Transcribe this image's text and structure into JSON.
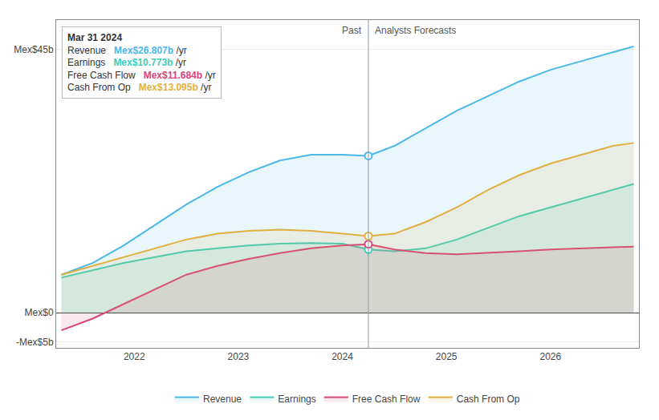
{
  "chart_data": {
    "type": "area",
    "x": [
      2021.3,
      2021.6,
      2021.9,
      2022.2,
      2022.5,
      2022.8,
      2023.1,
      2023.4,
      2023.7,
      2024.0,
      2024.25,
      2024.5,
      2024.8,
      2025.1,
      2025.4,
      2025.7,
      2026.0,
      2026.3,
      2026.6,
      2026.8
    ],
    "series": [
      {
        "name": "Revenue",
        "color": "#4ab8e8",
        "values": [
          6.5,
          8.5,
          11.5,
          15.0,
          18.5,
          21.5,
          24.0,
          26.0,
          27.0,
          27.0,
          26.8,
          28.5,
          31.5,
          34.5,
          37.0,
          39.5,
          41.5,
          43.0,
          44.5,
          45.5
        ]
      },
      {
        "name": "Earnings",
        "color": "#3ecfb8",
        "values": [
          6.0,
          7.2,
          8.5,
          9.5,
          10.5,
          11.0,
          11.5,
          11.8,
          11.9,
          11.8,
          10.8,
          10.5,
          11.0,
          12.5,
          14.5,
          16.5,
          18.0,
          19.5,
          21.0,
          22.0
        ]
      },
      {
        "name": "Free Cash Flow",
        "color": "#d8457a",
        "values": [
          -3.0,
          -1.0,
          1.5,
          4.0,
          6.5,
          8.0,
          9.2,
          10.2,
          11.0,
          11.5,
          11.7,
          10.8,
          10.2,
          10.0,
          10.2,
          10.5,
          10.8,
          11.0,
          11.2,
          11.3
        ]
      },
      {
        "name": "Cash From Op",
        "color": "#e0b040",
        "values": [
          6.5,
          8.0,
          9.5,
          11.0,
          12.5,
          13.5,
          14.0,
          14.2,
          14.0,
          13.5,
          13.1,
          13.5,
          15.5,
          18.0,
          21.0,
          23.5,
          25.5,
          27.0,
          28.5,
          29.0
        ]
      }
    ],
    "xlim": [
      2021.25,
      2026.85
    ],
    "ylim": [
      -6,
      50
    ],
    "xticks": [
      2022,
      2023,
      2024,
      2025,
      2026
    ],
    "yticks": [
      {
        "value": -5,
        "label": "-Mex$5b"
      },
      {
        "value": 0,
        "label": "Mex$0"
      },
      {
        "value": 45,
        "label": "Mex$45b"
      }
    ],
    "grid": true,
    "legend": "bottom",
    "annotations": [
      {
        "text": "Past",
        "x": 2024.25
      },
      {
        "text": "Analysts Forecasts",
        "x": 2024.25
      }
    ],
    "tooltip": {
      "title": "Mar 31 2024",
      "x": 2024.25,
      "rows": [
        {
          "label": "Revenue",
          "value": "Mex$26.807b",
          "unit": " /yr",
          "color": "#4ab8e8"
        },
        {
          "label": "Earnings",
          "value": "Mex$10.773b",
          "unit": " /yr",
          "color": "#3ecfb8"
        },
        {
          "label": "Free Cash Flow",
          "value": "Mex$11.684b",
          "unit": " /yr",
          "color": "#d8457a"
        },
        {
          "label": "Cash From Op",
          "value": "Mex$13.095b",
          "unit": " /yr",
          "color": "#e0b040"
        }
      ]
    }
  }
}
